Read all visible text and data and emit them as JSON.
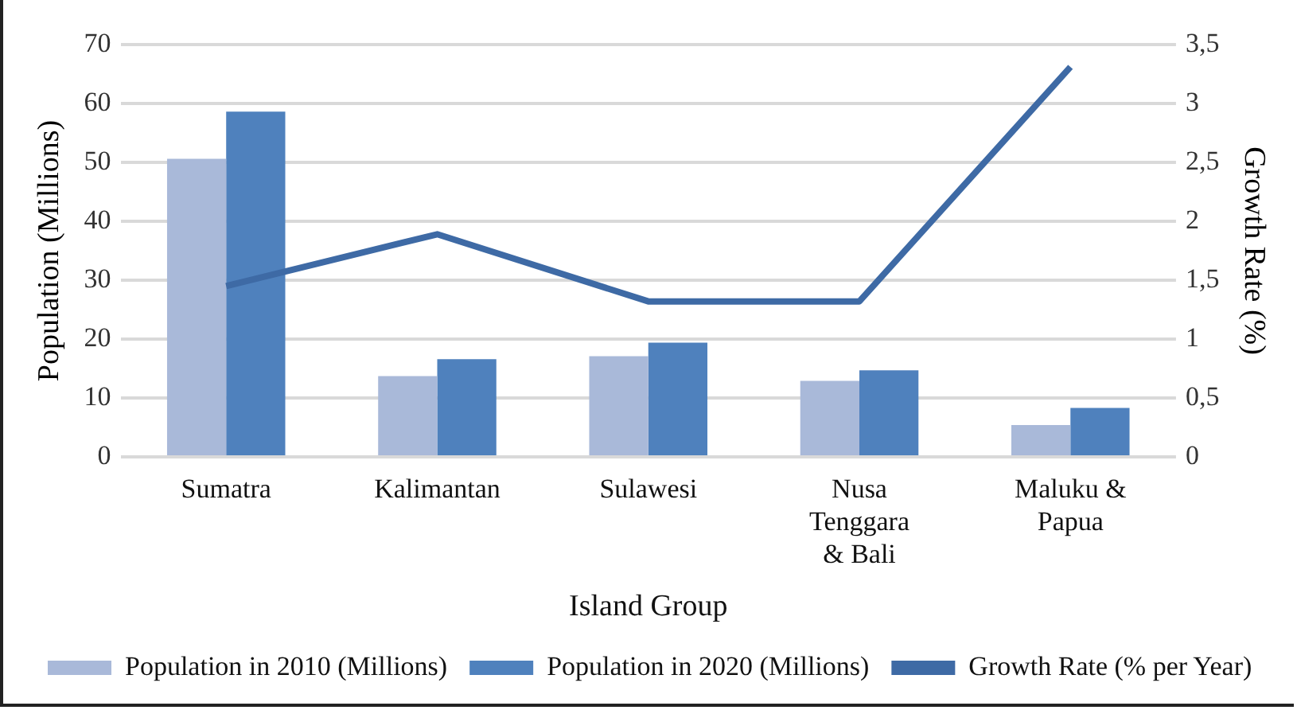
{
  "chart_data": {
    "type": "bar",
    "xlabel": "Island Group",
    "ylabel": "Population (Millions)",
    "y2label": "Growth Rate (%)",
    "categories": [
      "Sumatra",
      "Kalimantan",
      "Sulawesi",
      "Nusa Tenggara & Bali",
      "Maluku & Papua"
    ],
    "series": [
      {
        "name": "Population in 2010 (Millions)",
        "color": "#a9b9d9",
        "values": [
          50.6,
          13.7,
          17.1,
          12.9,
          5.4
        ]
      },
      {
        "name": "Population in 2020 (Millions)",
        "color": "#4f81bd",
        "values": [
          58.6,
          16.6,
          19.4,
          14.7,
          8.3
        ]
      },
      {
        "name": "Growth Rate (% per Year)",
        "type": "line",
        "axis": "y2",
        "color": "#3e6aa5",
        "values": [
          1.45,
          1.89,
          1.32,
          1.32,
          3.31
        ]
      }
    ],
    "ylim": [
      0,
      70
    ],
    "yticks": [
      0,
      10,
      20,
      30,
      40,
      50,
      60,
      70
    ],
    "y2lim": [
      0,
      3.5
    ],
    "y2ticks": [
      0,
      {
        "value": 0.5,
        "label": "0,5"
      },
      1,
      {
        "value": 1.5,
        "label": "1,5"
      },
      2,
      {
        "value": 2.5,
        "label": "2,5"
      },
      3,
      {
        "value": 3.5,
        "label": "3,5"
      }
    ],
    "grid": "y",
    "legend": "bottom",
    "marker": "none",
    "line_style": "solid"
  }
}
